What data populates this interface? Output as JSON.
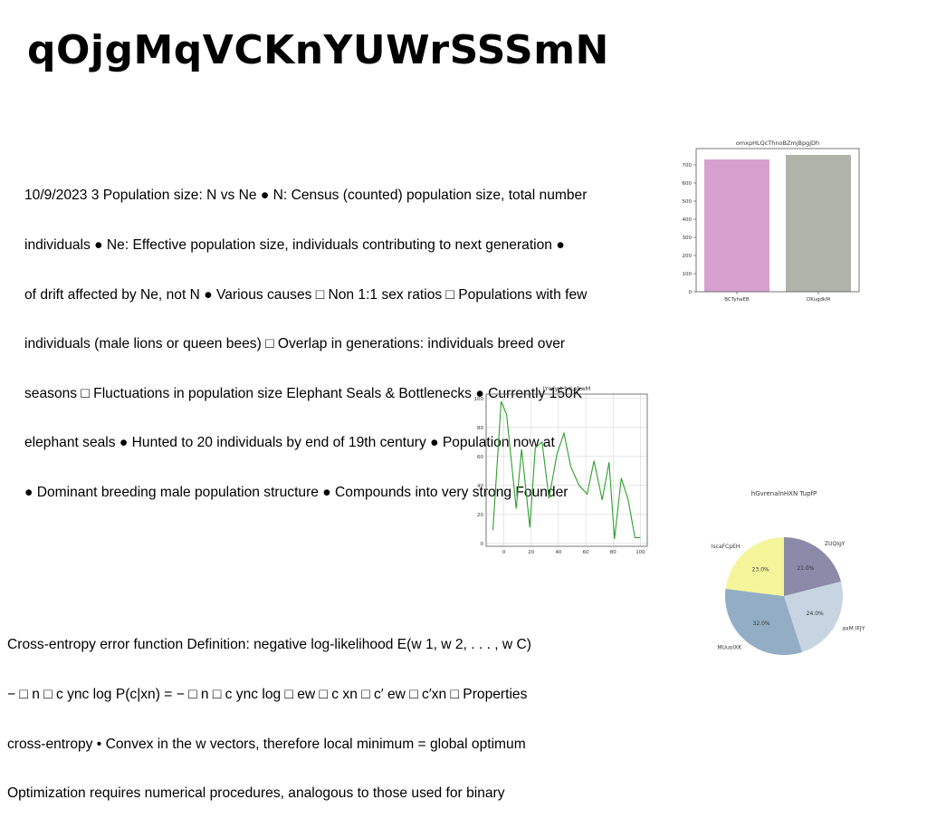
{
  "page_title": "qOjgMqVCKnYUWrSSSmN",
  "paragraph_1": [
    "10/9/2023 3 Population size: N vs Ne ● N: Census (counted) population size, total number",
    "individuals ● Ne: Effective population size, individuals contributing to next generation ●",
    "of drift affected by Ne, not N ● Various causes □ Non 1:1 sex ratios □ Populations with few",
    "individuals (male lions or queen bees) □ Overlap in generations: individuals breed over",
    "seasons □ Fluctuations in population size Elephant Seals & Bottlenecks ● Currently 150K",
    "elephant seals ● Hunted to 20 individuals by end of 19th century ● Population now at",
    "● Dominant breeding male population structure ● Compounds into very strong Founder"
  ],
  "paragraph_2": [
    "Cross-entropy error function Definition: negative log-likelihood E(w 1, w 2, . . . , w C)",
    "− □ n □ c ync log P(c|xn) = − □ n □ c ync log □ ew □ c xn □ c′ ew □ c′xn □ Properties",
    "cross-entropy • Convex in the w vectors, therefore local minimum = global optimum",
    "Optimization requires numerical procedures, analogous to those used for binary"
  ],
  "chart_data": [
    {
      "type": "bar",
      "title": "omxpHLQcThnoBZmjBpgjDh",
      "categories": [
        "BCTyhaEB",
        "DKugdkM"
      ],
      "values": [
        730,
        755
      ],
      "colors": [
        "#d8a0ce",
        "#b0b3aa"
      ],
      "ylim": [
        0,
        790
      ],
      "yticks": [
        0,
        100,
        200,
        300,
        400,
        500,
        600,
        700
      ],
      "grid": false
    },
    {
      "type": "line",
      "title": "JYwly t hrLekwM",
      "x": [
        -8,
        -2,
        2,
        9,
        13,
        19,
        23,
        28,
        33,
        39,
        44,
        49,
        55,
        61,
        66,
        72,
        77,
        81,
        86,
        91,
        96,
        100
      ],
      "y": [
        9,
        98,
        89,
        24,
        65,
        11,
        66,
        70,
        31,
        62,
        76,
        53,
        40,
        34,
        57,
        30,
        56,
        3,
        45,
        30,
        4,
        4
      ],
      "color": "#2e9e2e",
      "xlim": [
        -13,
        105
      ],
      "ylim": [
        -2,
        103
      ],
      "xticks": [
        0,
        20,
        40,
        60,
        80,
        100
      ],
      "yticks": [
        0,
        20,
        40,
        60,
        80,
        100
      ],
      "grid": true
    },
    {
      "type": "pie",
      "title": "hGvrenalnHXN TupfP",
      "labels": [
        "ZUQIgY",
        "axM IFJY",
        "MUuolXK",
        "IscaFCpEH"
      ],
      "values": [
        21.0,
        24.0,
        32.0,
        23.0
      ],
      "value_labels": [
        "21.0%",
        "24.0%",
        "32.0%",
        "23.0%"
      ],
      "colors": [
        "#8b8aa8",
        "#c8d4e2",
        "#93aec4",
        "#f5f59c"
      ]
    }
  ]
}
